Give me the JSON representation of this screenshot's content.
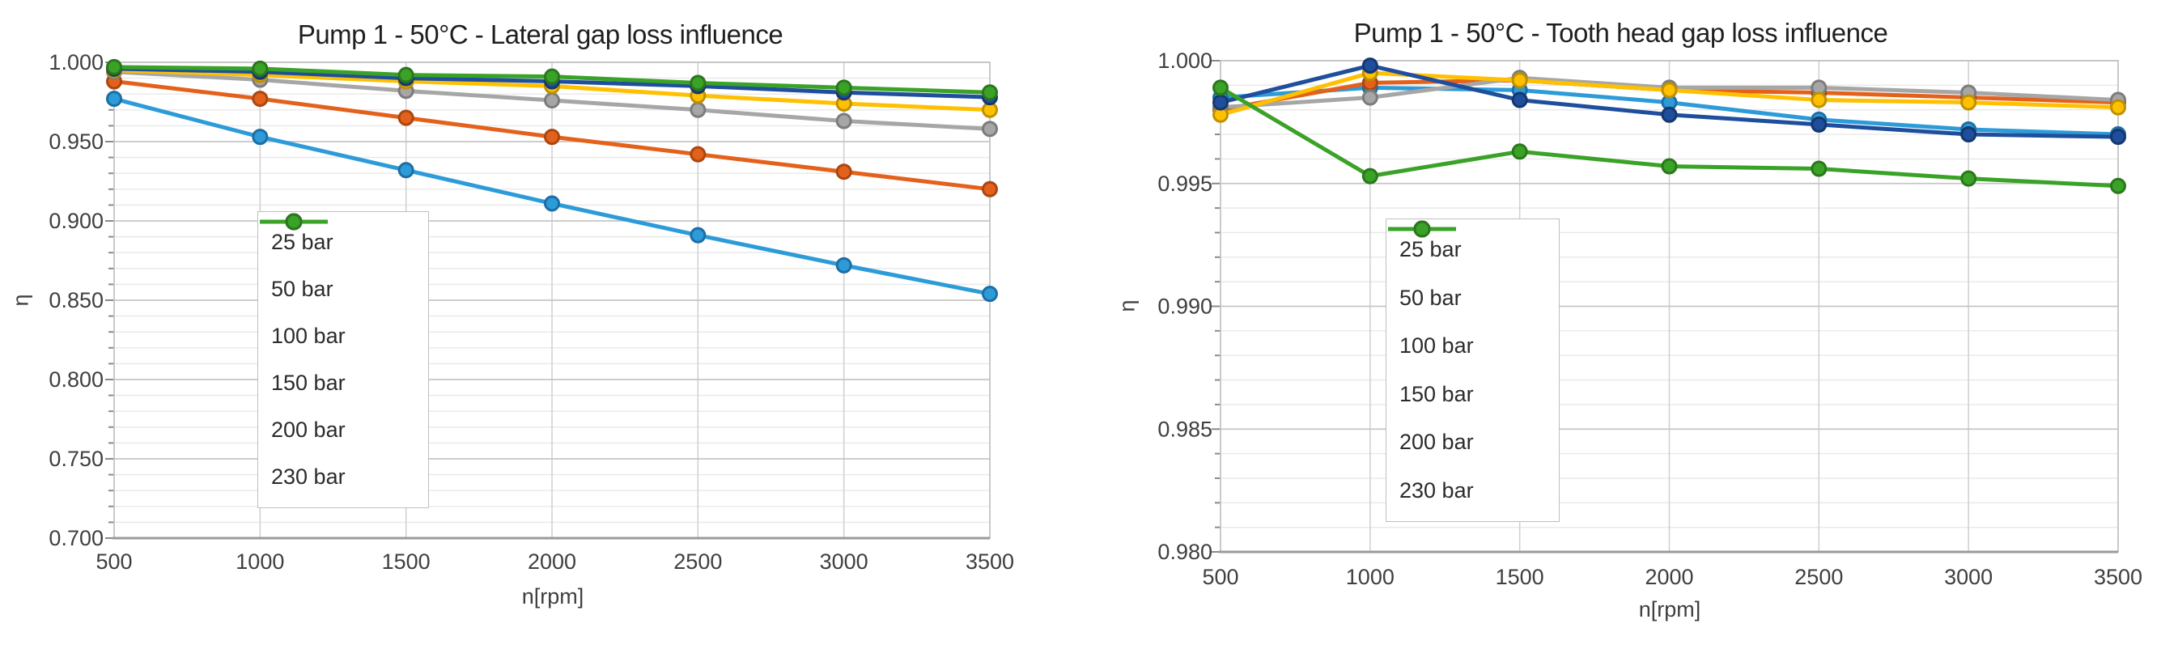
{
  "page": {
    "background": "#ffffff"
  },
  "chart_data": [
    {
      "type": "line",
      "title": "Pump 1 - 50°C - Lateral gap loss influence",
      "xlabel": "n[rpm]",
      "ylabel": "η",
      "x": [
        500,
        1000,
        1500,
        2000,
        2500,
        3000,
        3500
      ],
      "x_tick_labels": [
        "500",
        "1000",
        "1500",
        "2000",
        "2500",
        "3000",
        "3500"
      ],
      "ylim": [
        0.7,
        1.0
      ],
      "y_major_step": 0.05,
      "y_minor_step": 0.01,
      "y_ticks": [
        {
          "v": 1.0,
          "label": "1.000"
        },
        {
          "v": 0.95,
          "label": "0.950"
        },
        {
          "v": 0.9,
          "label": "0.900"
        },
        {
          "v": 0.85,
          "label": "0.850"
        },
        {
          "v": 0.8,
          "label": "0.800"
        },
        {
          "v": 0.75,
          "label": "0.750"
        },
        {
          "v": 0.7,
          "label": "0.700"
        }
      ],
      "grid": true,
      "legend_position": "inside-left",
      "series": [
        {
          "name": "25 bar",
          "color": "#2d9bd8",
          "edge": "#1c6ea4",
          "values": [
            0.977,
            0.953,
            0.932,
            0.911,
            0.891,
            0.872,
            0.854
          ]
        },
        {
          "name": "50 bar",
          "color": "#e4611b",
          "edge": "#a84712",
          "values": [
            0.988,
            0.977,
            0.965,
            0.953,
            0.942,
            0.931,
            0.92
          ]
        },
        {
          "name": "100 bar",
          "color": "#a6a6a6",
          "edge": "#7c7c7c",
          "values": [
            0.994,
            0.989,
            0.982,
            0.976,
            0.97,
            0.963,
            0.958
          ]
        },
        {
          "name": "150 bar",
          "color": "#ffc000",
          "edge": "#bf9000",
          "values": [
            0.995,
            0.992,
            0.988,
            0.985,
            0.979,
            0.974,
            0.97
          ]
        },
        {
          "name": "200 bar",
          "color": "#1f4e9d",
          "edge": "#16376e",
          "values": [
            0.996,
            0.994,
            0.99,
            0.988,
            0.985,
            0.981,
            0.978
          ]
        },
        {
          "name": "230 bar",
          "color": "#3aa226",
          "edge": "#2a771c",
          "values": [
            0.997,
            0.996,
            0.992,
            0.991,
            0.987,
            0.984,
            0.981
          ]
        }
      ]
    },
    {
      "type": "line",
      "title": "Pump 1 - 50°C - Tooth head gap loss influence",
      "xlabel": "n[rpm]",
      "ylabel": "η",
      "x": [
        500,
        1000,
        1500,
        2000,
        2500,
        3000,
        3500
      ],
      "x_tick_labels": [
        "500",
        "1000",
        "1500",
        "2000",
        "2500",
        "3000",
        "3500"
      ],
      "ylim": [
        0.98,
        1.0
      ],
      "y_major_step": 0.005,
      "y_minor_step": 0.001,
      "y_ticks": [
        {
          "v": 1.0,
          "label": "1.000"
        },
        {
          "v": 0.995,
          "label": "0.995"
        },
        {
          "v": 0.99,
          "label": "0.990"
        },
        {
          "v": 0.985,
          "label": "0.985"
        },
        {
          "v": 0.98,
          "label": "0.980"
        }
      ],
      "grid": true,
      "legend_position": "inside-left",
      "series": [
        {
          "name": "25 bar",
          "color": "#2d9bd8",
          "edge": "#1c6ea4",
          "values": [
            0.9985,
            0.9989,
            0.9988,
            0.9983,
            0.9976,
            0.9972,
            0.997
          ]
        },
        {
          "name": "50 bar",
          "color": "#e4611b",
          "edge": "#a84712",
          "values": [
            0.998,
            0.9991,
            0.9992,
            0.9988,
            0.9987,
            0.9985,
            0.9983
          ]
        },
        {
          "name": "100 bar",
          "color": "#a6a6a6",
          "edge": "#7c7c7c",
          "values": [
            0.9981,
            0.9985,
            0.9993,
            0.9989,
            0.9989,
            0.9987,
            0.9984
          ]
        },
        {
          "name": "150 bar",
          "color": "#ffc000",
          "edge": "#bf9000",
          "values": [
            0.9978,
            0.9995,
            0.9992,
            0.9988,
            0.9984,
            0.9983,
            0.9981
          ]
        },
        {
          "name": "200 bar",
          "color": "#1f4e9d",
          "edge": "#16376e",
          "values": [
            0.9983,
            0.9998,
            0.9984,
            0.9978,
            0.9974,
            0.997,
            0.9969
          ]
        },
        {
          "name": "230 bar",
          "color": "#3aa226",
          "edge": "#2a771c",
          "values": [
            0.9989,
            0.9953,
            0.9963,
            0.9957,
            0.9956,
            0.9952,
            0.9949
          ]
        }
      ]
    }
  ],
  "style": {
    "grid_major": "#c6c6c6",
    "grid_minor": "#e8e8e8",
    "grid_vertical": "#cfcfcf",
    "plot_border": "#c2c2c2",
    "axis_line": "#9a9a9a",
    "tick_color": "#8a8a8a",
    "text_color": "#3f3f3f"
  }
}
